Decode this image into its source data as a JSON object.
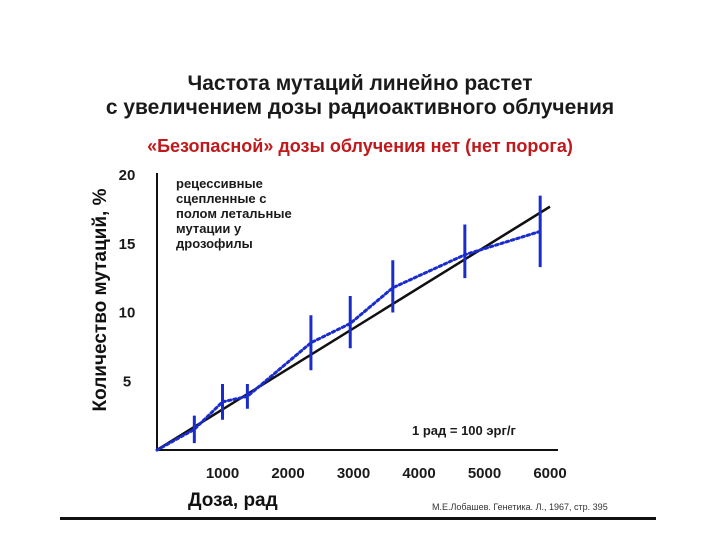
{
  "header": {
    "title_line1": "Частота мутаций линейно растет",
    "title_line2": "с увеличением дозы радиоактивного облучения",
    "subtitle": "«Безопасной» дозы облучения нет (нет порога)"
  },
  "source": "М.Е.Лобашев. Генетика. Л., 1967, стр. 395",
  "chart_data": {
    "type": "line",
    "ylabel": "Количество мутаций, %",
    "xlabel": "Доза, рад",
    "xlim": [
      0,
      6000
    ],
    "ylim": [
      0,
      20
    ],
    "x_ticks": [
      1000,
      2000,
      3000,
      4000,
      5000,
      6000
    ],
    "y_ticks": [
      5,
      10,
      15,
      20
    ],
    "annotation_text": [
      "рецессивные",
      "сцепленные с",
      "полом летальные",
      "мутации у",
      "дрозофилы"
    ],
    "unit_note": "1 рад = 100 эрг/г",
    "grid": false,
    "series": [
      {
        "style": "solid",
        "color": "#111111",
        "x": [
          0,
          6000
        ],
        "y": [
          0,
          17.7
        ]
      },
      {
        "style": "dotted",
        "color": "#1a2ccc",
        "x": [
          0,
          570,
          1000,
          1380,
          2350,
          2950,
          3600,
          4700,
          5850
        ],
        "y": [
          0,
          1.5,
          3.5,
          3.9,
          7.8,
          9.2,
          11.8,
          14.2,
          15.9
        ]
      }
    ],
    "error_bars": {
      "color": "#1a2ccc",
      "points": [
        {
          "x": 570,
          "low": 0.5,
          "high": 2.5
        },
        {
          "x": 1000,
          "low": 2.2,
          "high": 4.8
        },
        {
          "x": 1380,
          "low": 3.0,
          "high": 4.8
        },
        {
          "x": 2350,
          "low": 5.8,
          "high": 9.8
        },
        {
          "x": 2950,
          "low": 7.4,
          "high": 11.2
        },
        {
          "x": 3600,
          "low": 10.0,
          "high": 13.8
        },
        {
          "x": 4700,
          "low": 12.5,
          "high": 16.4
        },
        {
          "x": 5850,
          "low": 13.3,
          "high": 18.5
        }
      ]
    }
  }
}
